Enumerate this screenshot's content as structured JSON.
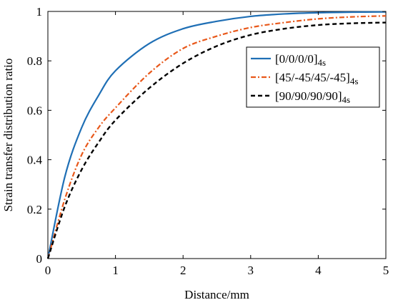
{
  "chart_data": {
    "type": "line",
    "xlabel": "Distance/mm",
    "ylabel": "Strain transfer distribution ratio",
    "xlim": [
      0,
      5
    ],
    "ylim": [
      0,
      1
    ],
    "xticks": [
      "0",
      "1",
      "2",
      "3",
      "4",
      "5"
    ],
    "yticks": [
      "0",
      "0.2",
      "0.4",
      "0.6",
      "0.8",
      "1"
    ],
    "grid": false,
    "legend_position": "top-right",
    "series": [
      {
        "name": "[0/0/0/0]",
        "name_subscript": "4s",
        "color": "#1f6fb5",
        "style": "solid",
        "x": [
          0,
          0.25,
          0.5,
          0.75,
          1.0,
          1.5,
          2.0,
          2.5,
          3.0,
          3.5,
          4.0,
          4.5,
          5.0
        ],
        "y": [
          0,
          0.33,
          0.53,
          0.66,
          0.76,
          0.87,
          0.93,
          0.96,
          0.98,
          0.99,
          0.995,
          0.997,
          0.998
        ]
      },
      {
        "name": "[45/-45/45/-45]",
        "name_subscript": "4s",
        "color": "#e8581a",
        "style": "dashdot",
        "x": [
          0,
          0.25,
          0.5,
          0.75,
          1.0,
          1.5,
          2.0,
          2.5,
          3.0,
          3.5,
          4.0,
          4.5,
          5.0
        ],
        "y": [
          0,
          0.24,
          0.42,
          0.53,
          0.61,
          0.75,
          0.85,
          0.9,
          0.935,
          0.955,
          0.97,
          0.978,
          0.982
        ]
      },
      {
        "name": "[90/90/90/90]",
        "name_subscript": "4s",
        "color": "#000000",
        "style": "dashed",
        "x": [
          0,
          0.25,
          0.5,
          0.75,
          1.0,
          1.5,
          2.0,
          2.5,
          3.0,
          3.5,
          4.0,
          4.5,
          5.0
        ],
        "y": [
          0,
          0.21,
          0.36,
          0.47,
          0.56,
          0.69,
          0.79,
          0.86,
          0.905,
          0.93,
          0.945,
          0.952,
          0.955
        ]
      }
    ]
  }
}
